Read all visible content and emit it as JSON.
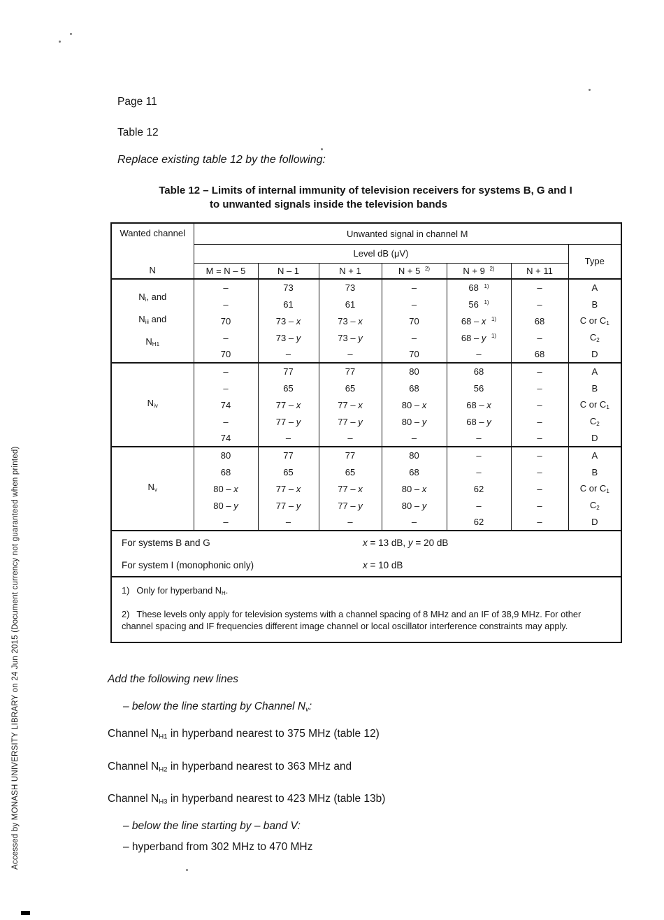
{
  "page": {
    "page_label": "Page 11",
    "table_label": "Table 12",
    "instruction": "Replace existing table 12 by the following:",
    "sidebar_note": "Accessed by MONASH UNIVERSITY LIBRARY on 24 Jun 2015 (Document currency not guaranteed when printed)"
  },
  "table12": {
    "caption_line1": "Table 12 – Limits of internal immunity of television receivers for systems B, G and I",
    "caption_line2": "to unwanted signals inside the television bands",
    "header": {
      "wanted_channel": "Wanted channel",
      "wanted_channel_symbol": "N",
      "unwanted_signal": "Unwanted signal in channel M",
      "level": "Level dB (μV)",
      "type": "Type",
      "columns": [
        "M = N – 5",
        "N – 1",
        "N + 1",
        "N + 5 ^{2)}",
        "N + 9 ^{2)}",
        "N + 11"
      ]
    },
    "groups": [
      {
        "label_lines": [
          "N_{i}, and",
          "N_{iii} and",
          "N_{H1}"
        ],
        "rows": [
          [
            "–",
            "73",
            "73",
            "–",
            "68 ^{1)}",
            "–",
            "A"
          ],
          [
            "–",
            "61",
            "61",
            "–",
            "56 ^{1)}",
            "–",
            "B"
          ],
          [
            "70",
            "73 – x",
            "73 – x",
            "70",
            "68 – x ^{1)}",
            "68",
            "C or C_{1}"
          ],
          [
            "–",
            "73 – y",
            "73 – y",
            "–",
            "68 – y ^{1)}",
            "–",
            "C_{2}"
          ],
          [
            "70",
            "–",
            "–",
            "70",
            "–",
            "68",
            "D"
          ]
        ]
      },
      {
        "label_lines": [
          "N_{iv}"
        ],
        "rows": [
          [
            "–",
            "77",
            "77",
            "80",
            "68",
            "–",
            "A"
          ],
          [
            "–",
            "65",
            "65",
            "68",
            "56",
            "–",
            "B"
          ],
          [
            "74",
            "77 – x",
            "77 – x",
            "80 – x",
            "68 – x",
            "–",
            "C or C_{1}"
          ],
          [
            "–",
            "77 – y",
            "77 – y",
            "80 – y",
            "68 – y",
            "–",
            "C_{2}"
          ],
          [
            "74",
            "–",
            "–",
            "–",
            "–",
            "–",
            "D"
          ]
        ]
      },
      {
        "label_lines": [
          "N_{v}"
        ],
        "rows": [
          [
            "80",
            "77",
            "77",
            "80",
            "–",
            "–",
            "A"
          ],
          [
            "68",
            "65",
            "65",
            "68",
            "–",
            "–",
            "B"
          ],
          [
            "80 – x",
            "77 – x",
            "77 – x",
            "80 – x",
            "62",
            "–",
            "C or C_{1}"
          ],
          [
            "80 – y",
            "77 – y",
            "77 – y",
            "80 – y",
            "–",
            "–",
            "C_{2}"
          ],
          [
            "–",
            "–",
            "–",
            "–",
            "62",
            "–",
            "D"
          ]
        ]
      }
    ],
    "system_rows": [
      {
        "label": "For systems B and G",
        "value": "x = 13 dB, y = 20 dB"
      },
      {
        "label": "For system I (monophonic only)",
        "value": "x = 10 dB"
      }
    ],
    "notes": [
      {
        "marker": "1)",
        "text": "Only for hyperband N_{H}."
      },
      {
        "marker": "2)",
        "text": "These levels only apply for television systems with a channel spacing of 8 MHz and an IF of 38,9 MHz. For other channel spacing and IF frequencies different image channel or local oscillator interference constraints may apply."
      }
    ]
  },
  "additions": {
    "intro": "Add the following new lines",
    "items": [
      {
        "text": "– below the line starting by Channel N_{v}:",
        "italic": true,
        "indent": true,
        "space": "mb16"
      },
      {
        "text": "Channel N_{H1} in hyperband nearest to 375 MHz (table 12)",
        "italic": false,
        "indent": false,
        "space": "mb23"
      },
      {
        "text": "Channel N_{H2} in hyperband nearest to 363 MHz and",
        "italic": false,
        "indent": false,
        "space": "mb23"
      },
      {
        "text": "Channel N_{H3} in hyperband nearest to 423 MHz (table 13b)",
        "italic": false,
        "indent": false,
        "space": "mb15"
      },
      {
        "text": "– below the line starting by – band V:",
        "italic": true,
        "indent": true,
        "space": "mb11"
      },
      {
        "text": "– hyperband from 302 MHz to 470 MHz",
        "italic": false,
        "indent": true,
        "space": ""
      }
    ]
  }
}
